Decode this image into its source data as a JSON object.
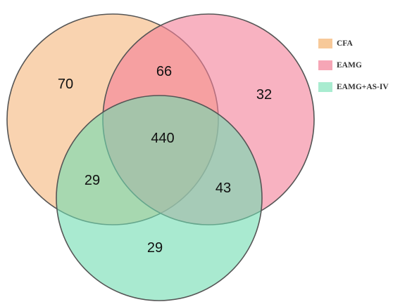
{
  "sets": [
    {
      "key": "cfa",
      "label": "CFA",
      "fill": "#f5b57c",
      "legend_color": "#f7c999"
    },
    {
      "key": "eamg",
      "label": "EAMG",
      "fill": "#f47e97",
      "legend_color": "#f6a6b6"
    },
    {
      "key": "eamg_asiv",
      "label": "EAMG+AS-IV",
      "fill": "#6fdcb0",
      "legend_color": "#a9ecd0"
    }
  ],
  "regions": {
    "cfa_only": "70",
    "eamg_only": "32",
    "eamg_asiv_only": "29",
    "cfa_eamg": "66",
    "cfa_eamg_asiv": "29",
    "eamg_eamg_asiv": "43",
    "all_three": "440"
  },
  "style": {
    "outline": "#555555",
    "circle_opacity": 0.6
  }
}
